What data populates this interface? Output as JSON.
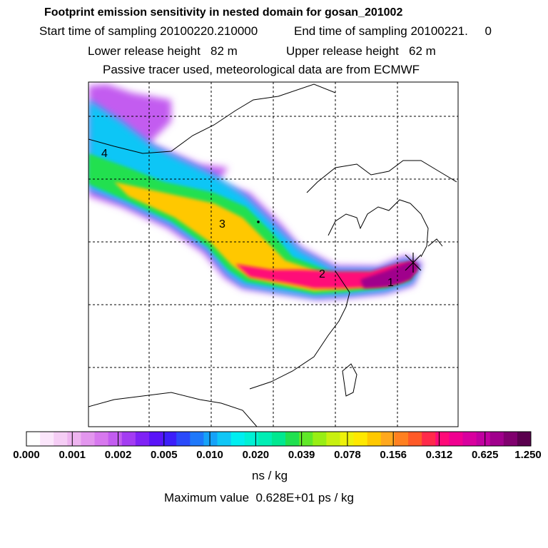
{
  "header": {
    "title": "Footprint emission sensitivity in nested domain for gosan_201002",
    "start_label": "Start time of sampling 20100220.210000",
    "end_label": "End time of sampling 20100221.     0",
    "lower_label": "Lower release height   82 m",
    "upper_label": "Upper release height   62 m",
    "tracer_label": "Passive tracer used, meteorological data are from ECMWF"
  },
  "map": {
    "point_labels": [
      "1",
      "2",
      "3",
      "4"
    ],
    "receptor_marker": "star-marker"
  },
  "colorbar": {
    "colors": [
      "#ffffff",
      "#fbe6fb",
      "#f5cdf5",
      "#eeb4f0",
      "#e396ee",
      "#d778ee",
      "#c35cf0",
      "#a33cf2",
      "#7f22f5",
      "#5a14f8",
      "#3c1efa",
      "#2a4afa",
      "#1e78fa",
      "#16a2f8",
      "#10c6f6",
      "#00eef0",
      "#00f0d4",
      "#00eeb4",
      "#00e890",
      "#20e050",
      "#60e828",
      "#98ee14",
      "#c8f010",
      "#eef20a",
      "#ffe800",
      "#ffc800",
      "#ffa81e",
      "#ff8020",
      "#ff5a28",
      "#ff2a4a",
      "#ff0a78",
      "#f00090",
      "#d8009e",
      "#c000a0",
      "#a0008c",
      "#80006e",
      "#5a004e"
    ],
    "tick_labels": [
      "0.000",
      "0.001",
      "0.002",
      "0.005",
      "0.010",
      "0.020",
      "0.039",
      "0.078",
      "0.156",
      "0.312",
      "0.625",
      "1.250"
    ],
    "unit": "ns / kg"
  },
  "footer": {
    "max_value": "Maximum value  0.628E+01 ps / kg"
  }
}
